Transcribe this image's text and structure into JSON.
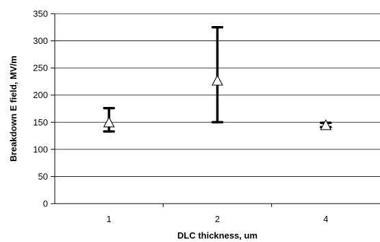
{
  "chart_data": {
    "type": "scatter",
    "xlabel": "DLC thickness, um",
    "ylabel": "Breakdown E field, MV/m",
    "categories": [
      "1",
      "2",
      "4"
    ],
    "ylim": [
      0,
      350
    ],
    "yticks": [
      0,
      50,
      100,
      150,
      200,
      250,
      300,
      350
    ],
    "grid": "horizontal",
    "marker": "open-triangle",
    "series": [
      {
        "values": [
          149,
          226,
          144
        ],
        "error_low": [
          133,
          150,
          141
        ],
        "error_high": [
          176,
          325,
          149
        ]
      }
    ]
  }
}
